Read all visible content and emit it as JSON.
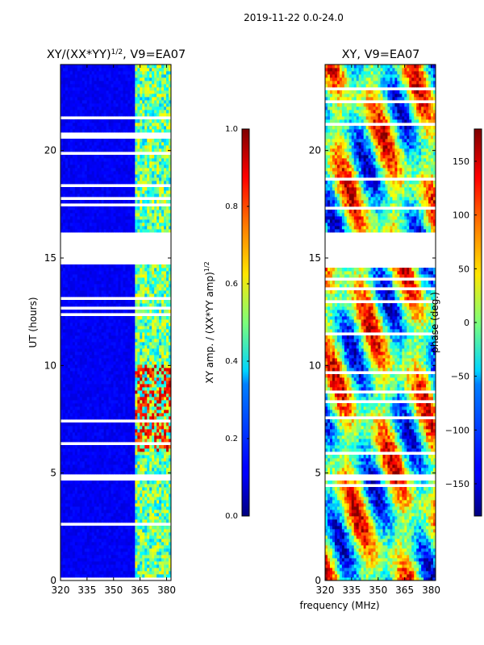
{
  "suptitle": "2019-11-22 0.0-24.0",
  "xlabel_shared": "frequency (MHz)",
  "chart_data": [
    {
      "type": "heatmap",
      "title_main": "XY/(XX*YY)",
      "title_exp": "1/2",
      "title_suffix": ", V9=EA07",
      "xlabel": "",
      "ylabel": "UT (hours)",
      "xlim": [
        320,
        382.5
      ],
      "ylim": [
        0,
        24
      ],
      "xticks": [
        320,
        335,
        350,
        365,
        380
      ],
      "yticks": [
        0,
        5,
        10,
        15,
        20
      ],
      "colormap": "jet",
      "value_description": "normalized XY amplitude, mostly near 0.1 with bright band at 362-382 MHz reaching 0.5-0.9 around 6-10 UT",
      "gaps_hours": [
        [
          16.2,
          14.7
        ],
        [
          4.95,
          4.7
        ]
      ],
      "colorbar": {
        "label_main": "XY amp. / (XX*YY amp)",
        "label_exp": "1/2",
        "range": [
          0.0,
          1.0
        ],
        "ticks": [
          "0.0",
          "0.2",
          "0.4",
          "0.6",
          "0.8",
          "1.0"
        ]
      }
    },
    {
      "type": "heatmap",
      "title": "XY, V9=EA07",
      "xlabel": "",
      "ylabel": "",
      "xlim": [
        320,
        382.5
      ],
      "ylim": [
        0,
        24
      ],
      "xticks": [
        320,
        335,
        350,
        365,
        380
      ],
      "yticks": [
        0,
        5,
        10,
        15,
        20
      ],
      "colormap": "jet",
      "value_description": "XY phase in degrees, varying between -180 and 180 with structured bands",
      "gaps_hours": [
        [
          16.2,
          14.7
        ],
        [
          4.95,
          4.7
        ]
      ],
      "colorbar": {
        "label": "phase (deg.)",
        "range": [
          -180,
          180
        ],
        "ticks": [
          "150",
          "100",
          "50",
          "0",
          "−50",
          "−100",
          "−150"
        ],
        "tick_values": [
          150,
          100,
          50,
          0,
          -50,
          -100,
          -150
        ]
      }
    }
  ]
}
